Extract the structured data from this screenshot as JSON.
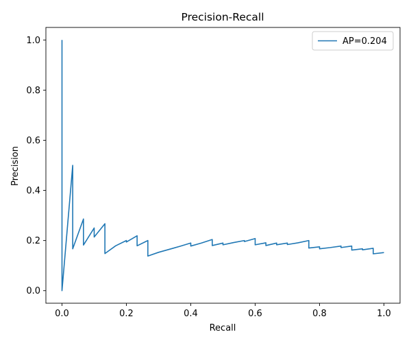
{
  "chart_data": {
    "type": "line",
    "title": "Precision-Recall",
    "xlabel": "Recall",
    "ylabel": "Precision",
    "xlim": [
      -0.05,
      1.05
    ],
    "ylim": [
      -0.05,
      1.05
    ],
    "xticks": [
      0.0,
      0.2,
      0.4,
      0.6,
      0.8,
      1.0
    ],
    "xtick_labels": [
      "0.0",
      "0.2",
      "0.4",
      "0.6",
      "0.8",
      "1.0"
    ],
    "yticks": [
      0.0,
      0.2,
      0.4,
      0.6,
      0.8,
      1.0
    ],
    "ytick_labels": [
      "0.0",
      "0.2",
      "0.4",
      "0.6",
      "0.8",
      "1.0"
    ],
    "grid": false,
    "legend_position": "top-right",
    "series": [
      {
        "name": "AP=0.204",
        "color": "#1f77b4",
        "x": [
          0.0,
          0.0,
          0.0,
          0.0333,
          0.0333,
          0.0333,
          0.0667,
          0.0667,
          0.1,
          0.1,
          0.1333,
          0.1333,
          0.1667,
          0.2,
          0.2,
          0.2333,
          0.2333,
          0.2667,
          0.2667,
          0.3,
          0.3333,
          0.3667,
          0.4,
          0.4,
          0.4333,
          0.4667,
          0.4667,
          0.5,
          0.5,
          0.5333,
          0.5667,
          0.5667,
          0.6,
          0.6,
          0.6333,
          0.6333,
          0.6667,
          0.6667,
          0.7,
          0.7,
          0.7333,
          0.7667,
          0.7667,
          0.8,
          0.8,
          0.8333,
          0.8667,
          0.8667,
          0.9,
          0.9,
          0.9333,
          0.9333,
          0.9667,
          0.9667,
          1.0
        ],
        "y": [
          1.0,
          0.0,
          0.0,
          0.5,
          0.5,
          0.167,
          0.286,
          0.182,
          0.25,
          0.214,
          0.267,
          0.148,
          0.179,
          0.2,
          0.194,
          0.219,
          0.179,
          0.2,
          0.138,
          0.153,
          0.165,
          0.177,
          0.19,
          0.178,
          0.19,
          0.204,
          0.18,
          0.19,
          0.183,
          0.192,
          0.2,
          0.196,
          0.208,
          0.183,
          0.191,
          0.18,
          0.19,
          0.183,
          0.19,
          0.184,
          0.191,
          0.2,
          0.17,
          0.175,
          0.167,
          0.172,
          0.178,
          0.172,
          0.178,
          0.162,
          0.167,
          0.163,
          0.169,
          0.147,
          0.152
        ]
      }
    ]
  }
}
